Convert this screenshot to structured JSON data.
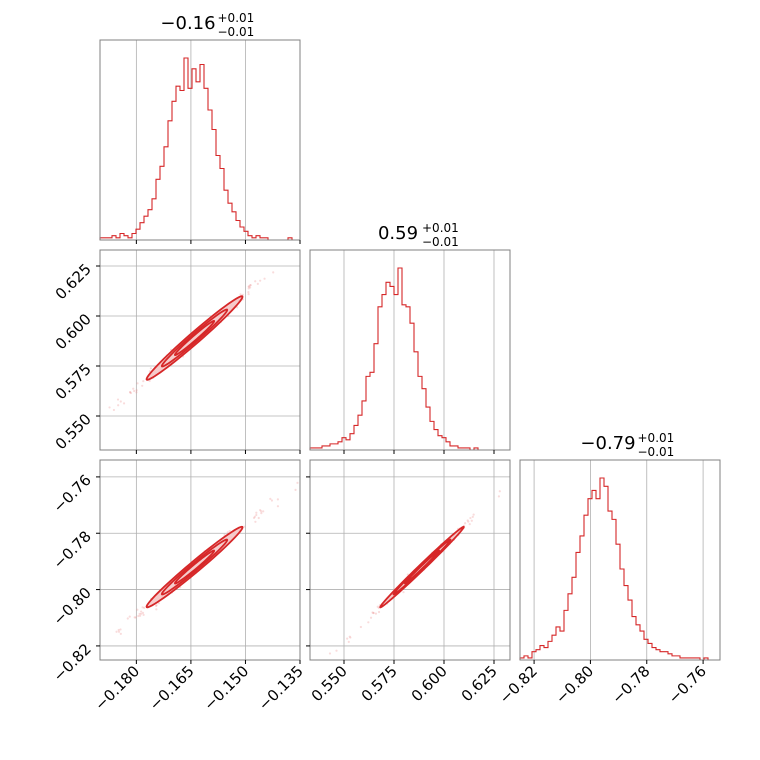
{
  "chart_data": {
    "type": "corner",
    "color": "#d62728",
    "parameters": [
      {
        "range": [
          -0.19,
          -0.135
        ],
        "ticks": [
          -0.18,
          -0.165,
          -0.15,
          -0.135
        ],
        "tick_labels": [
          "−0.180",
          "−0.165",
          "−0.150",
          "−0.135"
        ],
        "title_main": "−0.16",
        "title_plus": "+0.01",
        "title_minus": "−0.01",
        "median": -0.164,
        "sigma": 0.006
      },
      {
        "range": [
          0.533,
          0.633
        ],
        "ticks": [
          0.55,
          0.575,
          0.6,
          0.625
        ],
        "tick_labels": [
          "0.550",
          "0.575",
          "0.600",
          "0.625"
        ],
        "title_main": "0.59",
        "title_plus": "+0.01",
        "title_minus": "−0.01",
        "median": 0.589,
        "sigma": 0.0095
      },
      {
        "range": [
          -0.825,
          -0.754
        ],
        "ticks": [
          -0.82,
          -0.8,
          -0.78,
          -0.76
        ],
        "tick_labels": [
          "−0.82",
          "−0.80",
          "−0.78",
          "−0.76"
        ],
        "title_main": "−0.79",
        "title_plus": "+0.01",
        "title_minus": "−0.01",
        "median": -0.792,
        "sigma": 0.0065
      }
    ],
    "histograms": [
      {
        "param": 0,
        "bins_edges": [
          -0.19,
          -0.135
        ],
        "counts": [
          1,
          1,
          1,
          2,
          1,
          3,
          2,
          1,
          3,
          5,
          8,
          11,
          14,
          19,
          28,
          34,
          43,
          55,
          64,
          71,
          69,
          84,
          70,
          79,
          73,
          81,
          70,
          60,
          51,
          39,
          33,
          23,
          17,
          13,
          9,
          6,
          4,
          2,
          1,
          2,
          1,
          1,
          0,
          0,
          0,
          0,
          0,
          1,
          0,
          0
        ]
      },
      {
        "param": 1,
        "bins_edges": [
          0.533,
          0.633
        ],
        "counts": [
          1,
          1,
          1,
          2,
          2,
          3,
          3,
          4,
          6,
          5,
          8,
          12,
          17,
          24,
          36,
          38,
          52,
          70,
          76,
          82,
          80,
          76,
          89,
          71,
          70,
          62,
          48,
          36,
          30,
          21,
          14,
          10,
          7,
          6,
          4,
          2,
          2,
          1,
          1,
          1,
          0,
          1,
          0,
          0,
          0,
          0,
          0,
          0,
          0,
          0
        ]
      },
      {
        "param": 2,
        "bins_edges": [
          -0.825,
          -0.754
        ],
        "counts": [
          1,
          2,
          1,
          4,
          5,
          7,
          6,
          9,
          12,
          16,
          14,
          24,
          32,
          40,
          52,
          60,
          70,
          78,
          82,
          78,
          88,
          84,
          72,
          68,
          56,
          44,
          36,
          29,
          21,
          17,
          14,
          10,
          8,
          6,
          5,
          4,
          4,
          3,
          2,
          2,
          1,
          1,
          1,
          1,
          1,
          0,
          1,
          0,
          0,
          0
        ]
      }
    ],
    "pairs": [
      {
        "x_param": 0,
        "y_param": 1,
        "correlation": 0.985
      },
      {
        "x_param": 0,
        "y_param": 2,
        "correlation": 0.985
      },
      {
        "x_param": 1,
        "y_param": 2,
        "correlation": 0.995
      }
    ],
    "grid": true
  }
}
